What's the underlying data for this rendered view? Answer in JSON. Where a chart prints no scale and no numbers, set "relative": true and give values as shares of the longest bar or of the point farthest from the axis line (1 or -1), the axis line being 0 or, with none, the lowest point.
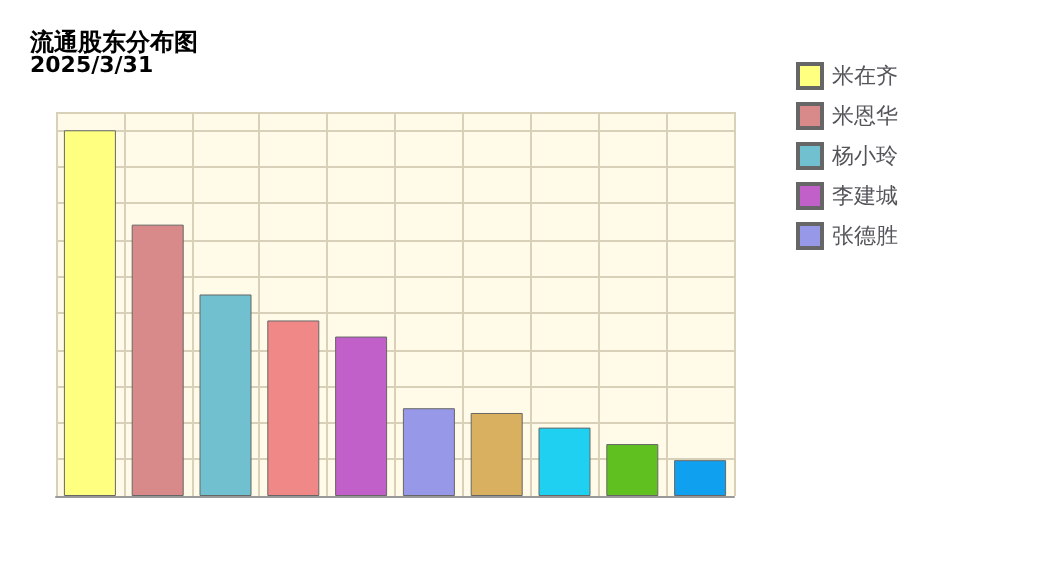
{
  "chart_data": {
    "type": "bar",
    "title": "流通股东分布图",
    "subtitle": "2025/3/31",
    "relative": true,
    "stacked": true,
    "grid": true,
    "legend": "right",
    "categories": [
      null,
      null,
      null,
      null,
      null,
      null,
      null,
      null,
      null,
      null
    ],
    "series": [
      {
        "name": "米在齐",
        "color": "#ffff80",
        "values": [
          1,
          null,
          null,
          null,
          null,
          null,
          null,
          null,
          null,
          null
        ]
      },
      {
        "name": "米恩华",
        "color": "#d88a8a",
        "values": [
          null,
          0.742,
          null,
          null,
          null,
          null,
          null,
          null,
          null,
          null
        ]
      },
      {
        "name": "杨小玲",
        "color": "#70c0d0",
        "values": [
          null,
          null,
          0.551,
          null,
          null,
          null,
          null,
          null,
          null,
          null
        ]
      },
      {
        "color": "#f08888",
        "values": [
          null,
          null,
          null,
          0.48,
          null,
          null,
          null,
          null,
          null,
          null
        ]
      },
      {
        "name": "李建城",
        "color": "#c060c8",
        "values": [
          null,
          null,
          null,
          null,
          0.436,
          null,
          null,
          null,
          null,
          null
        ]
      },
      {
        "name": "张德胜",
        "color": "#9898e8",
        "values": [
          null,
          null,
          null,
          null,
          null,
          0.24,
          null,
          null,
          null,
          null
        ]
      },
      {
        "color": "#d8b060",
        "values": [
          null,
          null,
          null,
          null,
          null,
          null,
          0.227,
          null,
          null,
          null
        ]
      },
      {
        "color": "#20d0f0",
        "values": [
          null,
          null,
          null,
          null,
          null,
          null,
          null,
          0.187,
          null,
          null
        ]
      },
      {
        "color": "#60c020",
        "values": [
          null,
          null,
          null,
          null,
          null,
          null,
          null,
          null,
          0.142,
          null
        ]
      },
      {
        "color": "#10a0f0",
        "values": [
          null,
          null,
          null,
          null,
          null,
          null,
          null,
          null,
          null,
          0.098
        ]
      }
    ]
  }
}
